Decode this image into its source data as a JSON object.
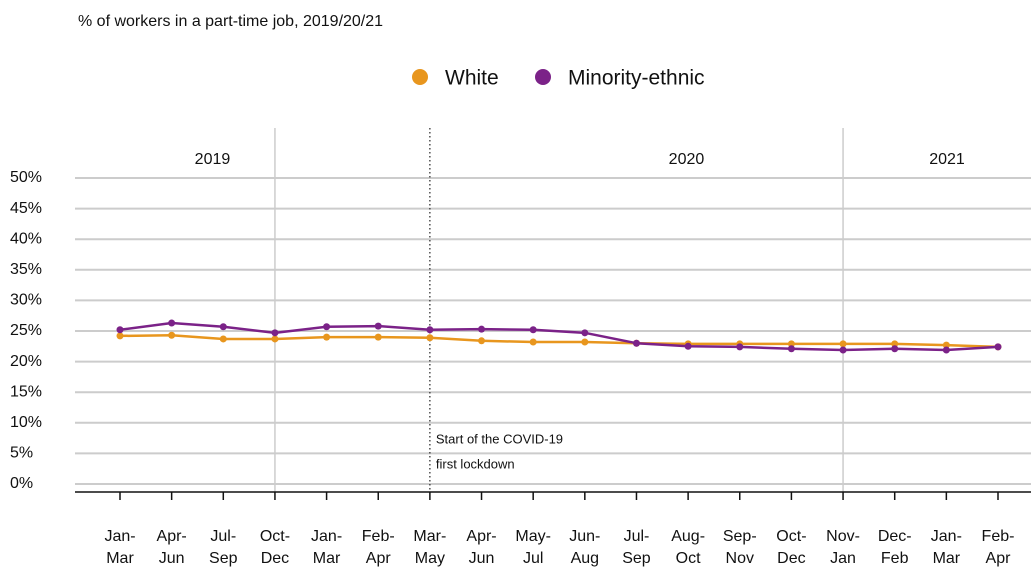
{
  "chart_data": {
    "type": "line",
    "title": "% of workers in a part-time job, 2019/20/21",
    "categories": [
      "Jan-Mar",
      "Apr-Jun",
      "Jul-Sep",
      "Oct-Dec",
      "Jan-Mar",
      "Feb-Apr",
      "Mar-May",
      "Apr-Jun",
      "May-Jul",
      "Jun-Aug",
      "Jul-Sep",
      "Aug-Oct",
      "Sep-Nov",
      "Oct-Dec",
      "Nov-Jan",
      "Dec-Feb",
      "Jan-Mar",
      "Feb-Apr"
    ],
    "series": [
      {
        "name": "White",
        "color": "#e8961e",
        "values": [
          24.2,
          24.3,
          23.7,
          23.7,
          24.0,
          24.0,
          23.9,
          23.4,
          23.2,
          23.2,
          23.0,
          22.9,
          22.9,
          22.9,
          22.9,
          22.9,
          22.7,
          22.4
        ]
      },
      {
        "name": "Minority-ethnic",
        "color": "#7b2288",
        "values": [
          25.2,
          26.3,
          25.7,
          24.7,
          25.7,
          25.8,
          25.2,
          25.3,
          25.2,
          24.7,
          23.0,
          22.5,
          22.4,
          22.1,
          21.9,
          22.1,
          21.9,
          22.4
        ]
      }
    ],
    "years": [
      "2019",
      "2020",
      "2021"
    ],
    "annotation": [
      "Start of the COVID-19",
      "first lockdown"
    ],
    "ylim": [
      0,
      50
    ],
    "yticks": [
      {
        "value": 0,
        "label": "0%"
      },
      {
        "value": 5,
        "label": "5%"
      },
      {
        "value": 10,
        "label": "10%"
      },
      {
        "value": 15,
        "label": "15%"
      },
      {
        "value": 20,
        "label": "20%"
      },
      {
        "value": 25,
        "label": "25%"
      },
      {
        "value": 30,
        "label": "30%"
      },
      {
        "value": 35,
        "label": "35%"
      },
      {
        "value": 40,
        "label": "40%"
      },
      {
        "value": 45,
        "label": "45%"
      },
      {
        "value": 50,
        "label": "50%"
      }
    ],
    "grid": true
  }
}
